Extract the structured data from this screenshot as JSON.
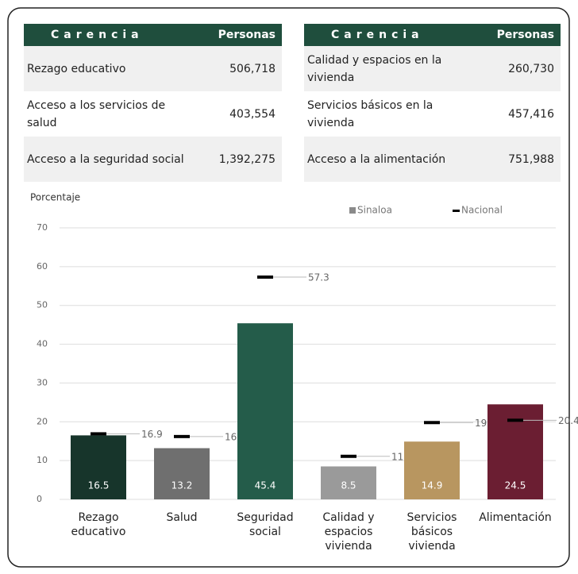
{
  "tables": [
    {
      "header": [
        "Carencia",
        "Personas"
      ],
      "rows": [
        [
          "Rezago educativo",
          "506,718"
        ],
        [
          "Acceso a los servicios de salud",
          "403,554"
        ],
        [
          "Acceso a la seguridad social",
          "1,392,275"
        ]
      ]
    },
    {
      "header": [
        "Carencia",
        "Personas"
      ],
      "rows": [
        [
          "Calidad y espacios en la vivienda",
          "260,730"
        ],
        [
          "Servicios básicos en la vivienda",
          "457,416"
        ],
        [
          "Acceso a la alimentación",
          "751,988"
        ]
      ]
    }
  ],
  "chart_data": {
    "type": "bar",
    "y_label": "Porcentaje",
    "categories": [
      [
        "Rezago",
        "educativo"
      ],
      [
        "Salud"
      ],
      [
        "Seguridad",
        "social"
      ],
      [
        "Calidad y",
        "espacios",
        "vivienda"
      ],
      [
        "Servicios",
        "básicos",
        "vivienda"
      ],
      [
        "Alimentación"
      ]
    ],
    "series": [
      {
        "name": "Sinaloa",
        "color": "#8a8a8a",
        "colors": [
          "#17352b",
          "#6f6f6f",
          "#245c4a",
          "#9a9a9a",
          "#b89660",
          "#6b1e32"
        ],
        "values": [
          16.5,
          13.2,
          45.4,
          8.5,
          14.9,
          24.5
        ]
      },
      {
        "name": "Nacional",
        "color": "#000000",
        "values": [
          16.9,
          16.2,
          57.3,
          11.1,
          19.8,
          20.4
        ]
      }
    ],
    "ylim": [
      0,
      70
    ],
    "yticks": [
      0,
      10,
      20,
      30,
      40,
      50,
      60,
      70
    ],
    "grid": true
  }
}
